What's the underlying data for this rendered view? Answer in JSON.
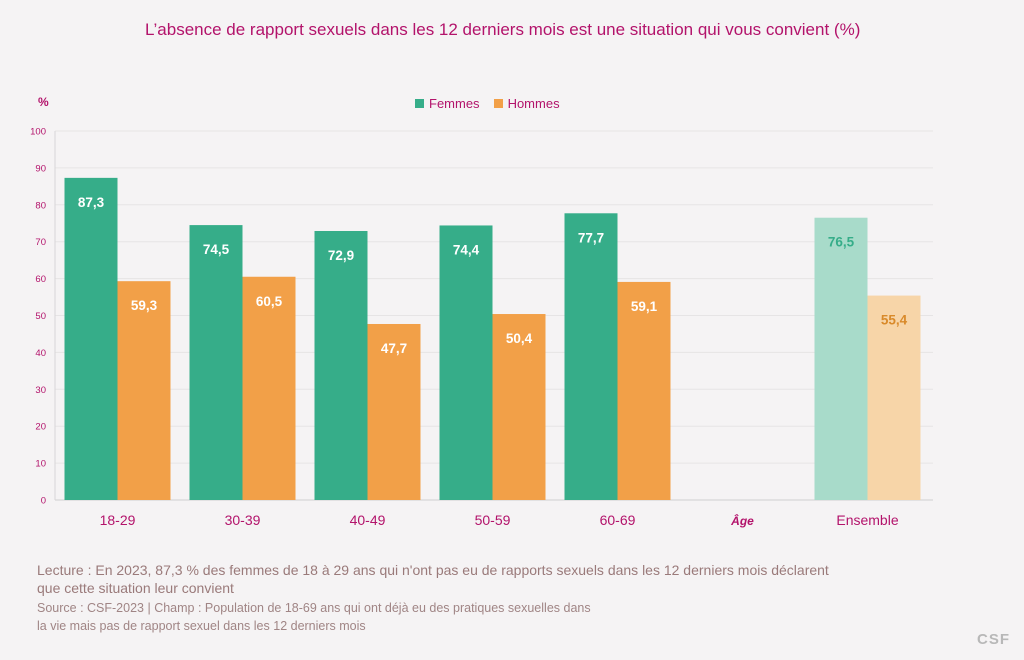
{
  "chart_data": {
    "type": "bar",
    "title": "L’absence de rapport sexuels dans les 12 derniers mois est une situation qui vous convient (%)",
    "ylabel": "%",
    "xlabel": "Âge",
    "ylim": [
      0,
      100
    ],
    "yticks": [
      0,
      10,
      20,
      30,
      40,
      50,
      60,
      70,
      80,
      90,
      100
    ],
    "grid": true,
    "legend_position": "top-center",
    "categories": [
      "18-29",
      "30-39",
      "40-49",
      "50-59",
      "60-69",
      "Ensemble"
    ],
    "series": [
      {
        "name": "Femmes",
        "color": "#36ad89",
        "highlight_color": "#a8dbca",
        "values": [
          87.3,
          74.5,
          72.9,
          74.4,
          77.7,
          76.5
        ],
        "labels": [
          "87,3",
          "74,5",
          "72,9",
          "74,4",
          "77,7",
          "76,5"
        ]
      },
      {
        "name": "Hommes",
        "color": "#f2a048",
        "highlight_color": "#f7d5a8",
        "values": [
          59.3,
          60.5,
          47.7,
          50.4,
          59.1,
          55.4
        ],
        "labels": [
          "59,3",
          "60,5",
          "47,7",
          "50,4",
          "59,1",
          "55,4"
        ]
      }
    ]
  },
  "colors": {
    "title": "#b3136b",
    "femmes_label_on_light": "#36ad89",
    "hommes_label_on_light": "#d98a2a"
  },
  "notes": {
    "lecture": "Lecture : En 2023, 87,3 % des femmes de 18 à 29 ans qui n'ont pas eu de rapports sexuels dans les 12 derniers mois déclarent que cette situation leur convient",
    "source": "Source : CSF-2023 | Champ : Population de 18-69 ans qui ont déjà eu des pratiques sexuelles dans la vie mais pas de rapport sexuel dans les 12 derniers mois"
  },
  "logo": "CSF"
}
